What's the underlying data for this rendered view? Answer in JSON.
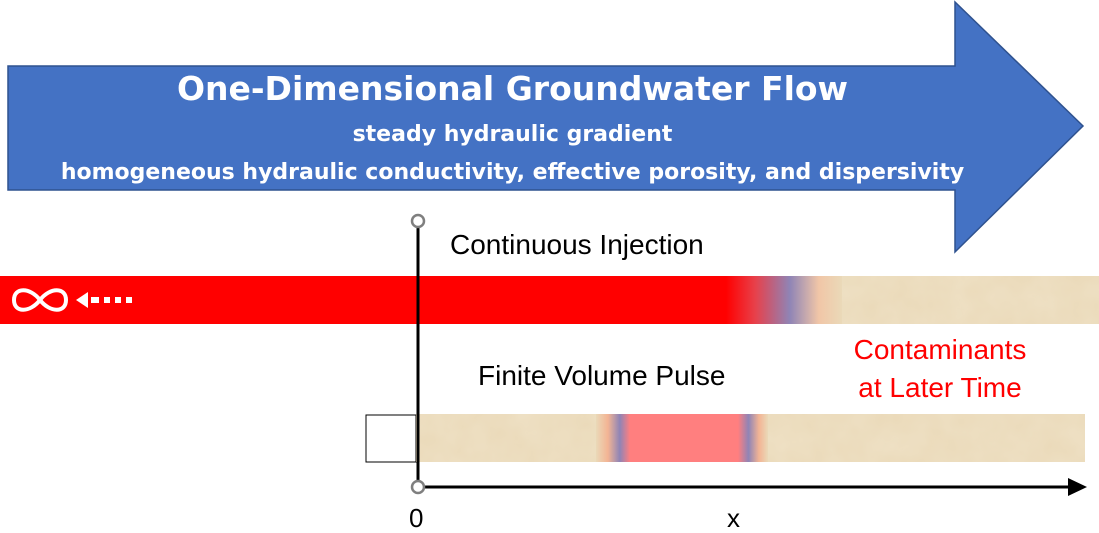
{
  "banner": {
    "title": "One-Dimensional Groundwater Flow",
    "subtitle_1": "steady hydraulic gradient",
    "subtitle_2": "homogeneous hydraulic conductivity, effective porosity, and dispersivity"
  },
  "continuous": {
    "label": "Continuous Injection"
  },
  "pulse": {
    "label": "Finite Volume Pulse"
  },
  "later": {
    "line1": "Contaminants",
    "line2": "at Later Time"
  },
  "axis": {
    "origin_label": "0",
    "x_label": "x"
  },
  "icons": {
    "infinity": "infinity-icon",
    "arrow": "dashed-left-arrow-icon"
  },
  "colors": {
    "banner_blue": "#4472c4",
    "contaminant_red": "#ff0000",
    "pulse_pink": "#ff7f7f",
    "sand": "#ead9b8",
    "label_red": "#ff0000"
  }
}
